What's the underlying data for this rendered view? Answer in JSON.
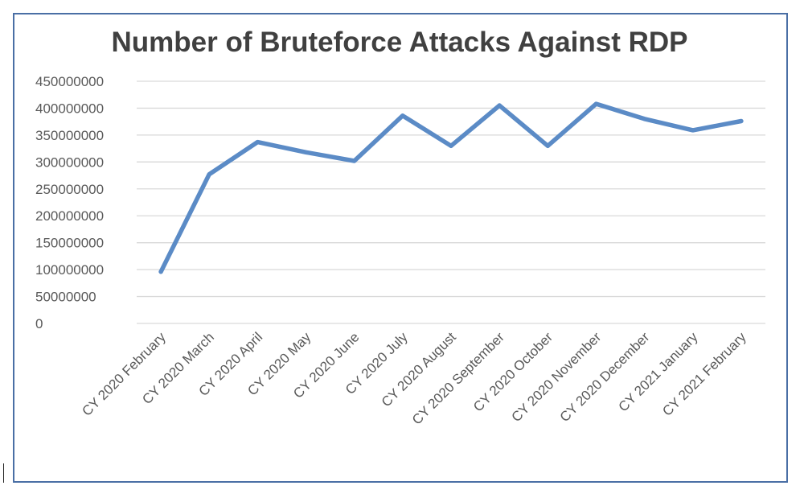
{
  "chart_data": {
    "type": "line",
    "title": "Number of Bruteforce Attacks Against RDP",
    "xlabel": "",
    "ylabel": "",
    "categories": [
      "CY 2020 February",
      "CY 2020 March",
      "CY 2020 April",
      "CY 2020 May",
      "CY 2020 June",
      "CY 2020 July",
      "CY 2020 August",
      "CY 2020 September",
      "CY 2020 October",
      "CY 2020 November",
      "CY 2020 December",
      "CY 2021 January",
      "CY 2021 February"
    ],
    "series": [
      {
        "values": [
          96000000,
          277000000,
          337000000,
          318000000,
          302000000,
          386000000,
          330000000,
          405000000,
          330000000,
          408000000,
          380000000,
          359000000,
          376000000
        ]
      }
    ],
    "yticks": [
      "0",
      "50000000",
      "100000000",
      "150000000",
      "200000000",
      "250000000",
      "300000000",
      "350000000",
      "400000000",
      "450000000"
    ],
    "ylim": [
      0,
      450000000
    ],
    "grid": true,
    "legend": "none",
    "colors": {
      "line": "#5b8bc6",
      "grid": "#d9d9d9",
      "axis": "#d9d9d9",
      "text": "#595959",
      "title": "#404040",
      "border": "#4a6fa5"
    }
  }
}
